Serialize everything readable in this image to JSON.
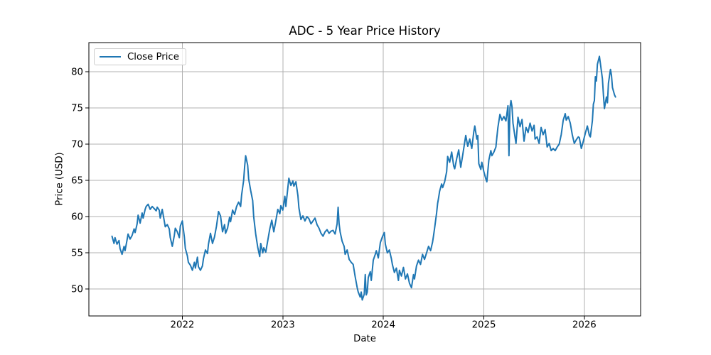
{
  "chart_data": {
    "type": "line",
    "title": "ADC - 5 Year Price History",
    "xlabel": "Date",
    "ylabel": "Price (USD)",
    "grid": true,
    "grid_color": "#b0b0b0",
    "axes_color": "#000000",
    "background_color": "#ffffff",
    "legend": {
      "position": "upper-left",
      "entries": [
        {
          "label": "Close Price",
          "color": "#1f77b4"
        }
      ]
    },
    "xlim": [
      2021.07,
      2026.56
    ],
    "ylim": [
      46.3,
      84.0
    ],
    "xticks": [
      2022,
      2023,
      2024,
      2025,
      2026
    ],
    "xtick_labels": [
      "2022",
      "2023",
      "2024",
      "2025",
      "2026"
    ],
    "yticks": [
      50,
      55,
      60,
      65,
      70,
      75,
      80
    ],
    "ytick_labels": [
      "50",
      "55",
      "60",
      "65",
      "70",
      "75",
      "80"
    ],
    "series": [
      {
        "name": "Close Price",
        "color": "#1f77b4",
        "x": [
          2021.3,
          2021.32,
          2021.33,
          2021.35,
          2021.37,
          2021.38,
          2021.4,
          2021.42,
          2021.43,
          2021.45,
          2021.46,
          2021.48,
          2021.5,
          2021.52,
          2021.53,
          2021.55,
          2021.56,
          2021.58,
          2021.6,
          2021.61,
          2021.63,
          2021.64,
          2021.66,
          2021.68,
          2021.7,
          2021.72,
          2021.74,
          2021.75,
          2021.77,
          2021.78,
          2021.8,
          2021.82,
          2021.83,
          2021.85,
          2021.87,
          2021.88,
          2021.9,
          2021.92,
          2021.93,
          2021.95,
          2021.97,
          2021.98,
          2022.0,
          2022.02,
          2022.03,
          2022.05,
          2022.06,
          2022.08,
          2022.1,
          2022.12,
          2022.13,
          2022.15,
          2022.16,
          2022.18,
          2022.2,
          2022.21,
          2022.23,
          2022.25,
          2022.26,
          2022.28,
          2022.3,
          2022.32,
          2022.34,
          2022.36,
          2022.38,
          2022.4,
          2022.42,
          2022.43,
          2022.45,
          2022.47,
          2022.48,
          2022.5,
          2022.52,
          2022.54,
          2022.56,
          2022.58,
          2022.59,
          2022.61,
          2022.62,
          2022.63,
          2022.65,
          2022.66,
          2022.68,
          2022.7,
          2022.71,
          2022.73,
          2022.75,
          2022.77,
          2022.78,
          2022.8,
          2022.81,
          2022.83,
          2022.85,
          2022.87,
          2022.89,
          2022.91,
          2022.93,
          2022.95,
          2022.97,
          2022.98,
          2023.0,
          2023.02,
          2023.03,
          2023.05,
          2023.06,
          2023.08,
          2023.1,
          2023.11,
          2023.13,
          2023.15,
          2023.16,
          2023.18,
          2023.2,
          2023.22,
          2023.24,
          2023.26,
          2023.28,
          2023.3,
          2023.32,
          2023.34,
          2023.36,
          2023.38,
          2023.4,
          2023.42,
          2023.44,
          2023.46,
          2023.48,
          2023.5,
          2023.52,
          2023.54,
          2023.55,
          2023.56,
          2023.57,
          2023.59,
          2023.61,
          2023.62,
          2023.64,
          2023.66,
          2023.68,
          2023.7,
          2023.72,
          2023.74,
          2023.75,
          2023.77,
          2023.78,
          2023.79,
          2023.81,
          2023.82,
          2023.83,
          2023.84,
          2023.85,
          2023.87,
          2023.88,
          2023.9,
          2023.92,
          2023.93,
          2023.95,
          2023.97,
          2023.99,
          2024.01,
          2024.02,
          2024.04,
          2024.06,
          2024.08,
          2024.09,
          2024.11,
          2024.13,
          2024.15,
          2024.16,
          2024.18,
          2024.2,
          2024.22,
          2024.24,
          2024.26,
          2024.28,
          2024.3,
          2024.31,
          2024.33,
          2024.35,
          2024.37,
          2024.39,
          2024.41,
          2024.43,
          2024.45,
          2024.47,
          2024.49,
          2024.5,
          2024.51,
          2024.53,
          2024.54,
          2024.55,
          2024.56,
          2024.58,
          2024.59,
          2024.61,
          2024.63,
          2024.64,
          2024.66,
          2024.68,
          2024.7,
          2024.71,
          2024.73,
          2024.75,
          2024.77,
          2024.79,
          2024.8,
          2024.82,
          2024.84,
          2024.86,
          2024.88,
          2024.9,
          2024.91,
          2024.93,
          2024.94,
          2024.95,
          2024.97,
          2024.98,
          2025.0,
          2025.02,
          2025.03,
          2025.05,
          2025.07,
          2025.08,
          2025.1,
          2025.12,
          2025.13,
          2025.14,
          2025.16,
          2025.18,
          2025.2,
          2025.22,
          2025.24,
          2025.25,
          2025.26,
          2025.27,
          2025.28,
          2025.29,
          2025.31,
          2025.32,
          2025.34,
          2025.36,
          2025.38,
          2025.4,
          2025.42,
          2025.44,
          2025.46,
          2025.48,
          2025.5,
          2025.51,
          2025.53,
          2025.55,
          2025.57,
          2025.59,
          2025.61,
          2025.63,
          2025.65,
          2025.67,
          2025.69,
          2025.71,
          2025.73,
          2025.75,
          2025.77,
          2025.79,
          2025.81,
          2025.82,
          2025.84,
          2025.86,
          2025.88,
          2025.9,
          2025.92,
          2025.94,
          2025.95,
          2025.97,
          2025.99,
          2026.01,
          2026.03,
          2026.05,
          2026.06,
          2026.08,
          2026.09,
          2026.1,
          2026.11,
          2026.12,
          2026.13,
          2026.15,
          2026.16,
          2026.18,
          2026.19,
          2026.2,
          2026.22,
          2026.23,
          2026.24,
          2026.26,
          2026.27,
          2026.28,
          2026.3,
          2026.31
        ],
        "y": [
          57.3,
          56.3,
          57.1,
          56.2,
          56.7,
          55.6,
          54.8,
          55.9,
          55.3,
          56.8,
          57.6,
          56.9,
          57.4,
          58.3,
          57.8,
          59.0,
          60.2,
          59.1,
          60.5,
          59.8,
          61.0,
          61.4,
          61.7,
          61.0,
          61.4,
          61.1,
          60.8,
          61.3,
          60.9,
          59.8,
          61.0,
          59.4,
          58.6,
          58.9,
          58.3,
          57.1,
          55.9,
          57.4,
          58.4,
          57.9,
          57.1,
          58.7,
          59.4,
          57.2,
          55.6,
          54.6,
          53.7,
          53.3,
          52.6,
          53.7,
          52.9,
          54.4,
          53.1,
          52.6,
          53.2,
          54.2,
          55.4,
          54.9,
          56.2,
          57.7,
          56.3,
          57.2,
          58.7,
          60.7,
          60.1,
          57.9,
          58.9,
          57.7,
          58.4,
          59.9,
          59.3,
          60.9,
          60.3,
          61.4,
          62.0,
          61.4,
          63.0,
          65.0,
          66.9,
          68.4,
          67.1,
          65.2,
          63.6,
          62.2,
          60.0,
          57.6,
          55.8,
          54.5,
          56.3,
          55.0,
          55.7,
          55.1,
          56.7,
          58.3,
          59.5,
          57.9,
          59.4,
          61.0,
          60.4,
          61.5,
          60.9,
          62.8,
          61.4,
          64.0,
          65.3,
          64.3,
          64.9,
          64.2,
          64.8,
          62.9,
          61.2,
          59.6,
          60.1,
          59.4,
          60.0,
          59.7,
          59.0,
          59.4,
          59.8,
          58.9,
          58.4,
          57.7,
          57.3,
          57.9,
          58.2,
          57.7,
          58.0,
          58.1,
          57.6,
          59.0,
          61.3,
          59.0,
          57.9,
          56.6,
          55.9,
          54.8,
          55.4,
          54.1,
          53.7,
          53.4,
          51.7,
          50.2,
          49.6,
          48.9,
          49.6,
          48.5,
          49.3,
          52.0,
          49.2,
          49.6,
          51.6,
          52.4,
          51.2,
          54.0,
          54.8,
          55.3,
          54.3,
          56.4,
          57.2,
          57.8,
          56.2,
          55.0,
          55.4,
          54.2,
          53.4,
          52.3,
          52.9,
          51.2,
          52.6,
          51.8,
          53.0,
          51.4,
          52.1,
          50.8,
          50.2,
          52.0,
          51.4,
          53.2,
          54.0,
          53.4,
          54.8,
          54.1,
          55.0,
          55.9,
          55.3,
          56.5,
          57.4,
          58.4,
          60.5,
          61.8,
          62.6,
          63.5,
          64.5,
          64.0,
          64.8,
          66.2,
          68.3,
          67.5,
          68.9,
          67.0,
          66.6,
          68.0,
          69.2,
          66.8,
          68.5,
          69.4,
          71.2,
          69.7,
          70.7,
          69.4,
          71.7,
          72.5,
          70.7,
          71.2,
          67.3,
          66.5,
          67.5,
          66.2,
          65.2,
          64.8,
          67.8,
          69.1,
          68.4,
          68.9,
          69.6,
          71.0,
          72.3,
          74.1,
          73.3,
          73.8,
          73.2,
          75.3,
          68.4,
          75.0,
          76.0,
          75.2,
          72.9,
          71.0,
          70.1,
          73.7,
          72.4,
          73.4,
          70.4,
          72.3,
          71.6,
          72.9,
          71.8,
          72.6,
          70.7,
          71.0,
          70.1,
          72.3,
          71.3,
          72.0,
          69.6,
          70.1,
          69.1,
          69.4,
          69.1,
          69.6,
          70.0,
          71.3,
          73.3,
          74.2,
          73.3,
          73.8,
          72.9,
          71.3,
          70.1,
          70.6,
          71.0,
          70.9,
          69.4,
          70.4,
          71.5,
          72.5,
          71.2,
          71.0,
          73.2,
          75.5,
          76.0,
          79.3,
          78.7,
          81.0,
          82.1,
          81.1,
          79.0,
          76.8,
          74.9,
          76.5,
          75.7,
          78.4,
          80.3,
          79.5,
          77.8,
          76.8,
          76.5
        ]
      }
    ]
  }
}
